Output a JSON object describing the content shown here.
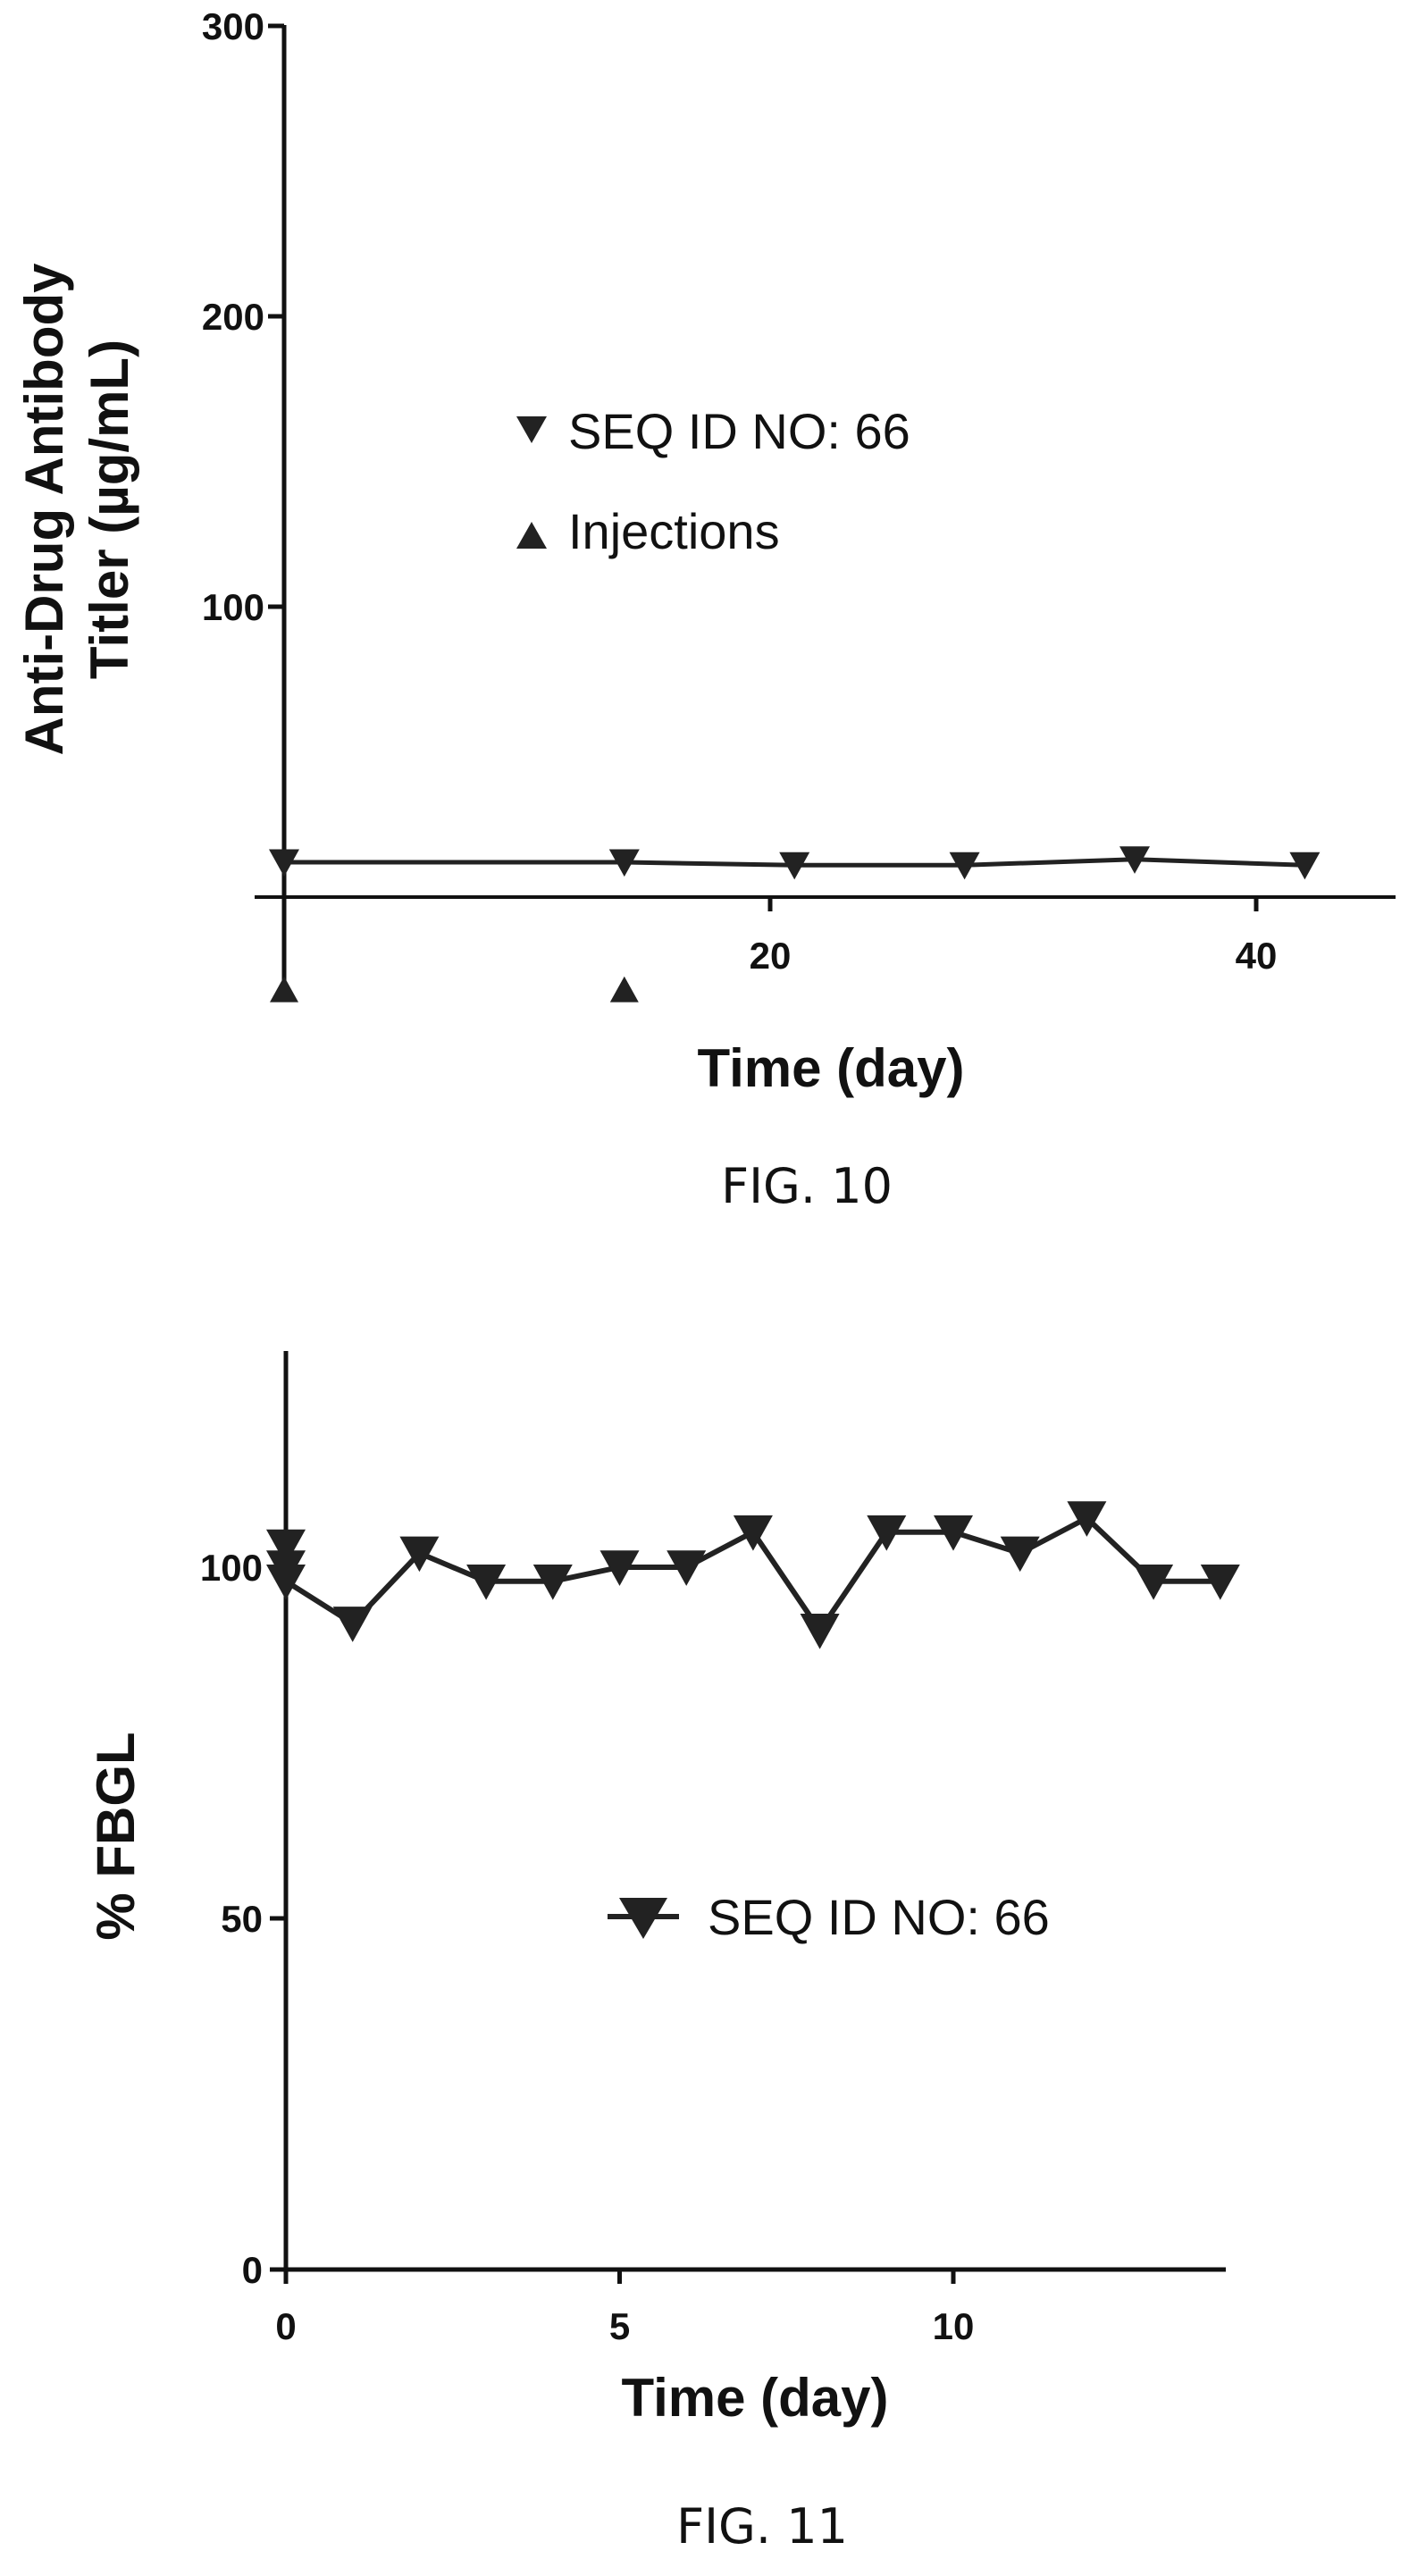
{
  "chart_data": [
    {
      "type": "line",
      "caption": "FIG. 10",
      "xlabel": "Time (day)",
      "ylabel_line1": "Anti-Drug  Antibody",
      "ylabel_line2": "Titler (µg/mL)",
      "ylim": [
        0,
        300
      ],
      "xlim": [
        0,
        45
      ],
      "y_ticks": [
        100,
        200,
        300
      ],
      "x_ticks": [
        20,
        40
      ],
      "grid": false,
      "legend_position": "center",
      "legend": [
        "SEQ ID NO: 66",
        "Injections"
      ],
      "series": [
        {
          "name": "SEQ ID NO: 66",
          "marker": "triangle-down",
          "x": [
            0,
            14,
            21,
            28,
            35,
            42
          ],
          "y": [
            12,
            12,
            11,
            11,
            13,
            11
          ]
        },
        {
          "name": "Injections",
          "marker": "triangle-up",
          "x": [
            0,
            14
          ],
          "y": [
            -32,
            -32
          ],
          "note_y_placement": "below axis"
        }
      ]
    },
    {
      "type": "line",
      "caption": "FIG. 11",
      "xlabel": "Time (day)",
      "ylabel": "% FBGL",
      "ylim": [
        0,
        130
      ],
      "xlim": [
        0,
        14
      ],
      "y_ticks": [
        0,
        50,
        100
      ],
      "x_ticks": [
        0,
        5,
        10
      ],
      "grid": false,
      "legend_position": "center",
      "legend": [
        "SEQ ID NO:  66"
      ],
      "series": [
        {
          "name": "SEQ ID NO:  66",
          "marker": "triangle-down",
          "x": [
            0,
            0,
            0,
            1,
            2,
            3,
            4,
            5,
            6,
            7,
            8,
            9,
            10,
            11,
            12,
            13,
            14
          ],
          "y": [
            103,
            100,
            98,
            92,
            102,
            98,
            98,
            100,
            100,
            105,
            91,
            105,
            105,
            102,
            107,
            98,
            98
          ]
        }
      ]
    }
  ]
}
